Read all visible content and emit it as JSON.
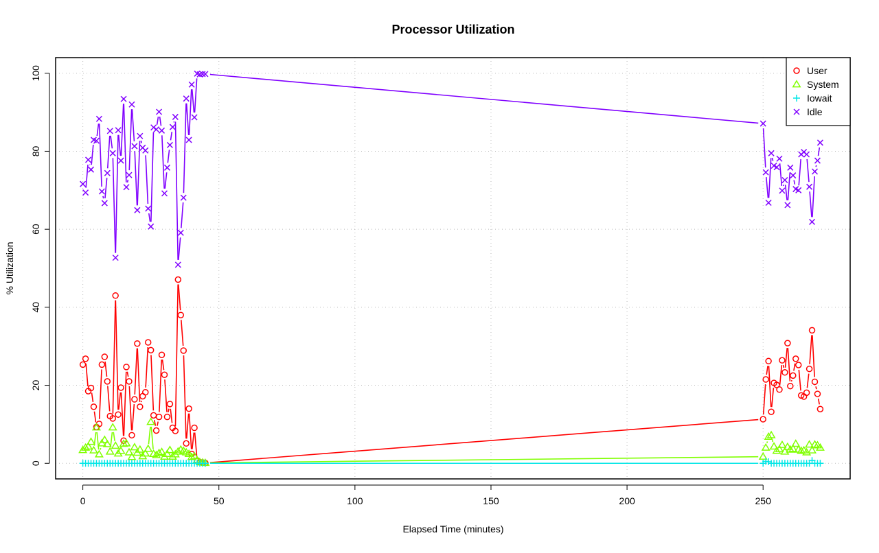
{
  "chart_data": {
    "type": "line",
    "title": "Processor Utilization",
    "xlabel": "Elapsed Time (minutes)",
    "ylabel": "% Utilization",
    "xlim": [
      -10,
      282
    ],
    "ylim": [
      -4,
      104
    ],
    "xticks": [
      0,
      50,
      100,
      150,
      200,
      250
    ],
    "yticks": [
      0,
      20,
      40,
      60,
      80,
      100
    ],
    "grid": true,
    "legend_position": "top-right",
    "x": [
      0,
      1,
      2,
      3,
      4,
      5,
      6,
      7,
      8,
      9,
      10,
      11,
      12,
      13,
      14,
      15,
      16,
      17,
      18,
      19,
      20,
      21,
      22,
      23,
      24,
      25,
      26,
      27,
      28,
      29,
      30,
      31,
      32,
      33,
      34,
      35,
      36,
      37,
      38,
      39,
      40,
      41,
      42,
      43,
      44,
      45,
      250,
      251,
      252,
      253,
      254,
      255,
      256,
      257,
      258,
      259,
      260,
      261,
      262,
      263,
      264,
      265,
      266,
      267,
      268,
      269,
      270,
      271
    ],
    "series": [
      {
        "name": "User",
        "color": "#ff0000",
        "marker": "circle",
        "values": [
          25.3,
          26.8,
          18.5,
          19.3,
          14.5,
          9.3,
          10.1,
          25.3,
          27.3,
          21,
          12.1,
          11.5,
          43,
          12.5,
          19.4,
          5.8,
          24.7,
          21,
          7.2,
          16.4,
          30.7,
          14.5,
          17.2,
          18.2,
          31,
          29,
          12.3,
          8.4,
          11.9,
          27.8,
          22.7,
          11.9,
          15.2,
          9.1,
          8.3,
          47.1,
          38,
          28.9,
          5.1,
          14,
          2.4,
          9.1,
          0.7,
          0.3,
          0.2,
          0.1,
          11.3,
          21.5,
          26.2,
          13.2,
          20.6,
          20.1,
          18.9,
          26.4,
          23.3,
          30.8,
          19.8,
          22.5,
          26.8,
          25.2,
          17.4,
          17.1,
          18.1,
          24.2,
          34.1,
          20.9,
          17.8,
          13.9
        ]
      },
      {
        "name": "System",
        "color": "#80ff00",
        "marker": "triangle",
        "values": [
          3.4,
          4,
          4.3,
          5.5,
          3.3,
          9.2,
          2.3,
          5.1,
          6,
          4.9,
          3,
          9.2,
          4.5,
          2.5,
          3.2,
          5,
          5.1,
          2.8,
          1.6,
          4.1,
          2.7,
          3.5,
          1.8,
          2.5,
          3.7,
          10.6,
          2.4,
          2.1,
          2.6,
          2.9,
          1.7,
          2.4,
          3.4,
          1.7,
          2.3,
          3,
          3.5,
          3.2,
          2.8,
          2.4,
          1.6,
          1.8,
          0.8,
          0.3,
          0.2,
          0.1,
          1.7,
          4,
          6.8,
          7.2,
          4.3,
          3.2,
          3.6,
          4.7,
          3,
          4.2,
          3.5,
          3.7,
          5,
          3.5,
          3.2,
          3.3,
          2.8,
          4.8,
          3.3,
          4.8,
          4.6,
          4
        ]
      },
      {
        "name": "Iowait",
        "color": "#00e6e6",
        "marker": "plus",
        "values": [
          0,
          0,
          0,
          0,
          0,
          0,
          0,
          0,
          0,
          0,
          0,
          0,
          0,
          0,
          0,
          0,
          0,
          0,
          0,
          0,
          0,
          0,
          0,
          0,
          0,
          0,
          0,
          0,
          0,
          0,
          0,
          0,
          0,
          0,
          0,
          0,
          0,
          0,
          0,
          0,
          0,
          0,
          0,
          0,
          0,
          0,
          0,
          0.5,
          0.4,
          0,
          0,
          0,
          0,
          0,
          0,
          0,
          0,
          0,
          0,
          0,
          0,
          0,
          0,
          0,
          0.7,
          0,
          0,
          0
        ]
      },
      {
        "name": "Idle",
        "color": "#8000ff",
        "marker": "x",
        "values": [
          71.6,
          69.4,
          77.8,
          75.3,
          82.9,
          82.7,
          88.3,
          69.7,
          66.7,
          74.4,
          85.2,
          79.5,
          52.7,
          85.4,
          77.6,
          93.4,
          70.8,
          73.9,
          92,
          81.3,
          64.9,
          83.9,
          80.9,
          80.2,
          65.3,
          60.7,
          86.1,
          85.6,
          90.1,
          85.3,
          69.2,
          75.8,
          81.6,
          86.2,
          88.8,
          50.9,
          59.1,
          68.1,
          93.5,
          82.9,
          97.1,
          88.7,
          99.9,
          99.7,
          99.8,
          99.8,
          87.1,
          74.6,
          66.8,
          79.5,
          76.3,
          75.9,
          78.1,
          69.9,
          72.6,
          66.2,
          75.8,
          73.8,
          70.3,
          70,
          79.2,
          79.8,
          79.2,
          70.9,
          61.9,
          74.8,
          77.6,
          82.2
        ]
      }
    ]
  }
}
